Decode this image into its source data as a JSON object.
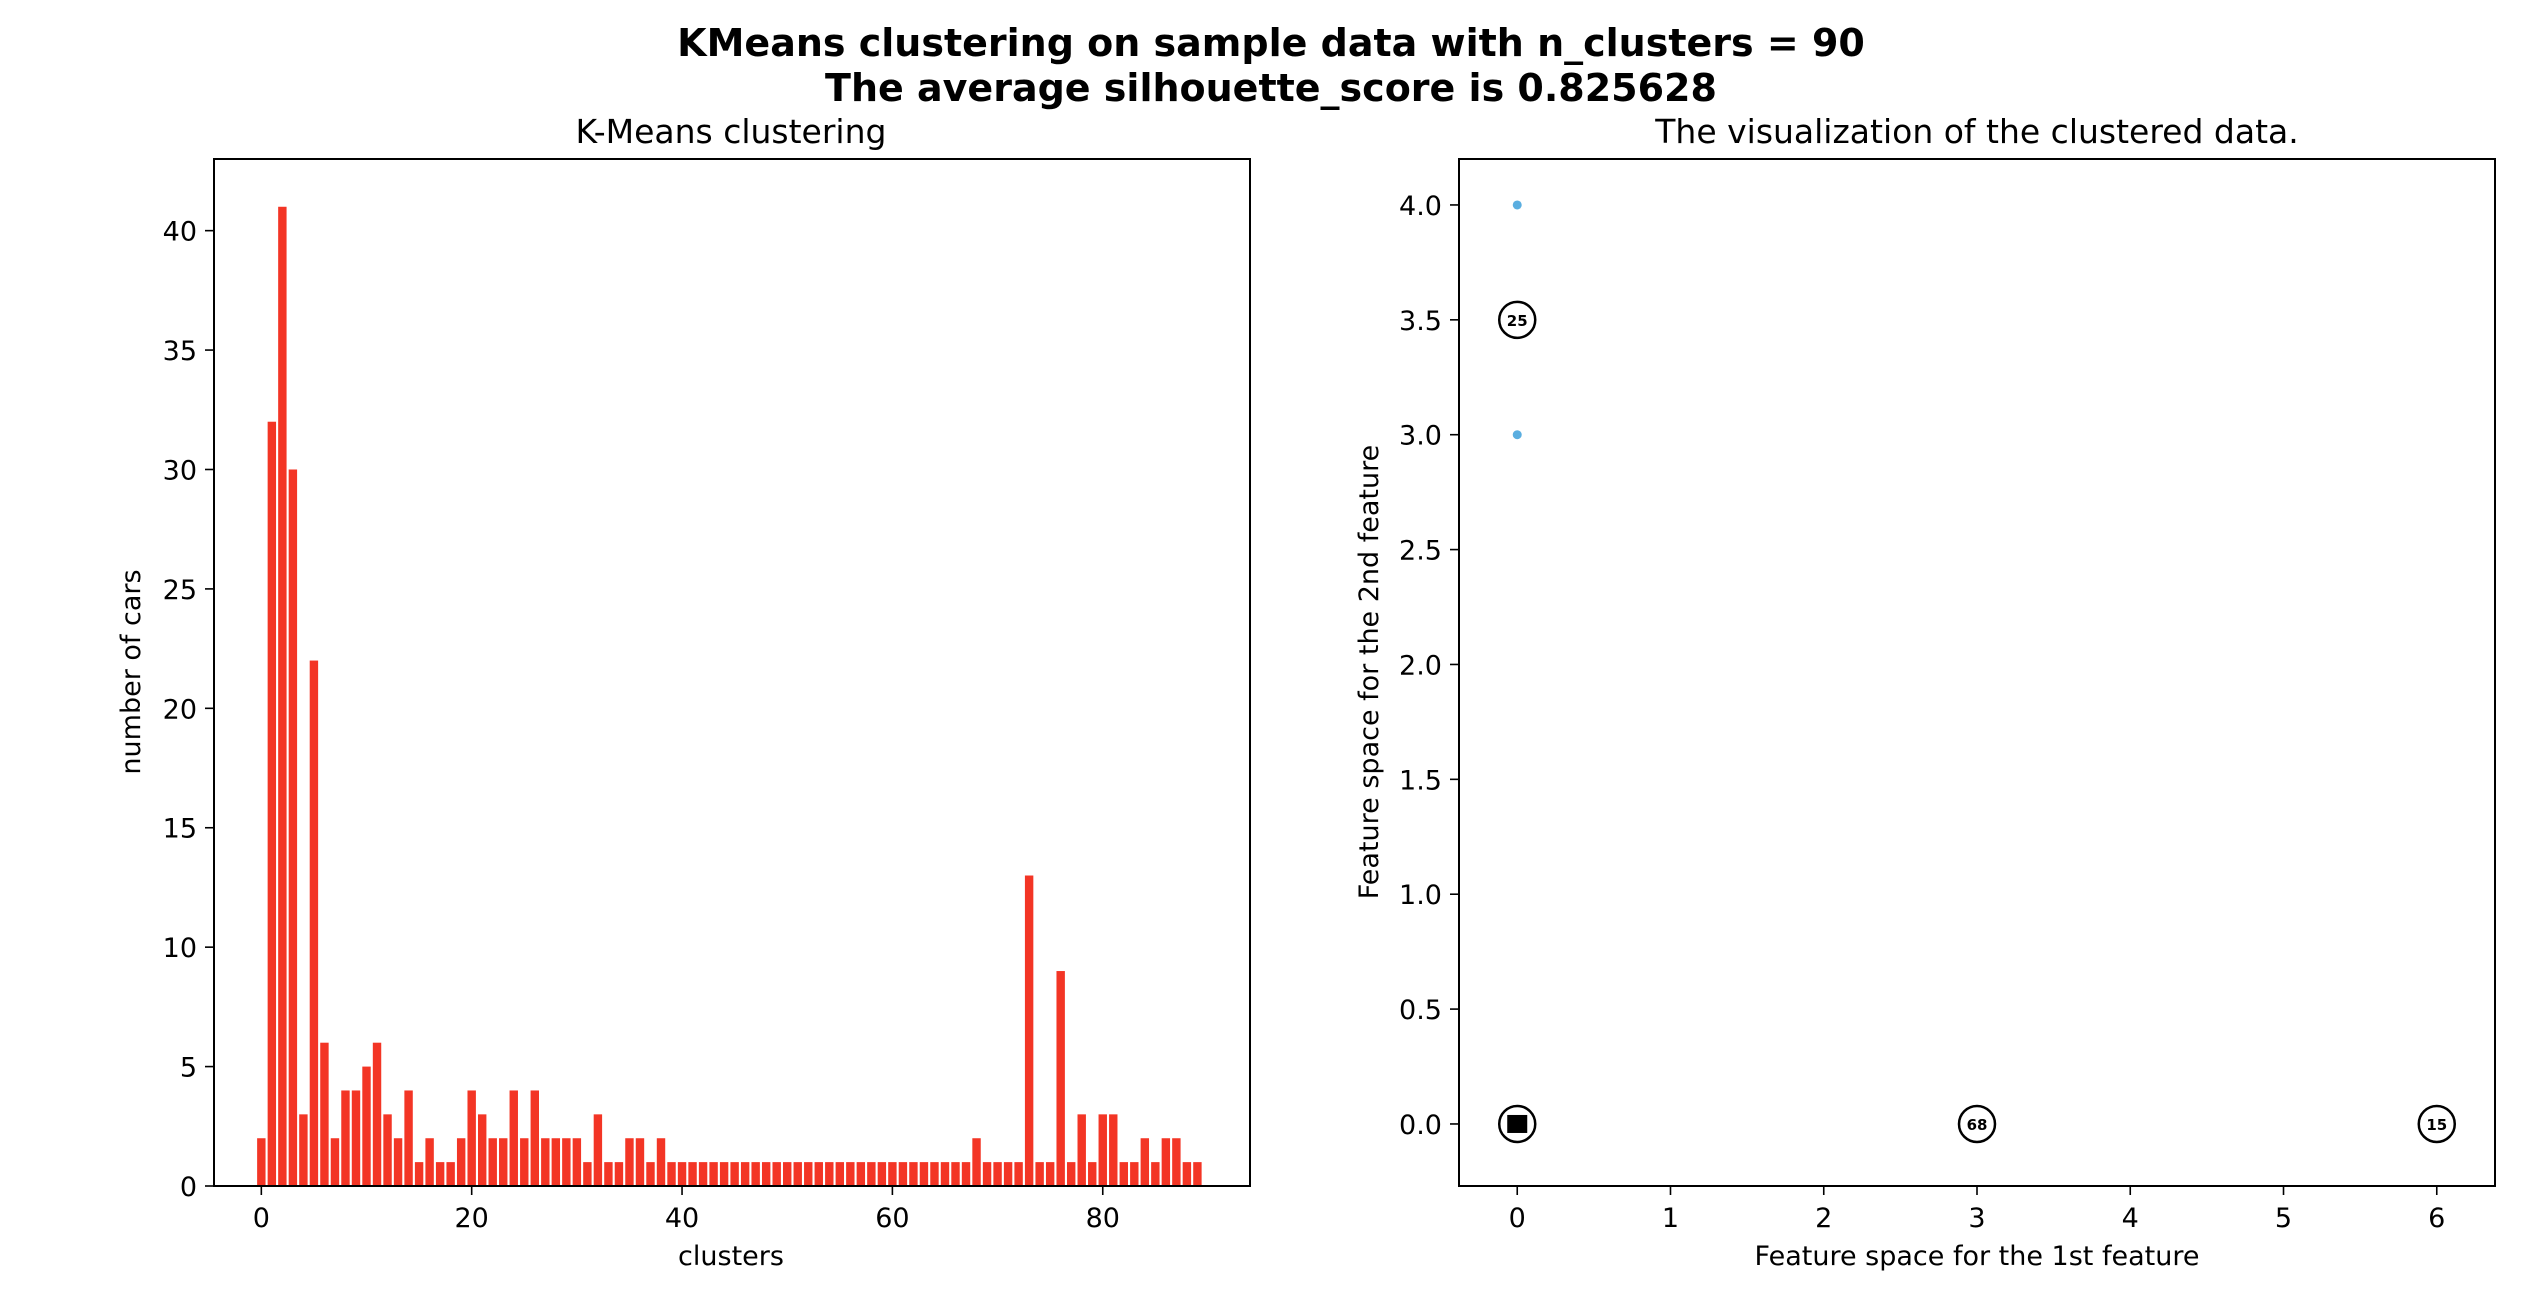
{
  "figure": {
    "title_line1": "KMeans clustering on sample data with n_clusters = 90",
    "title_line2": "The average silhouette_score is 0.825628"
  },
  "chart_data": [
    {
      "type": "bar",
      "title": "K-Means clustering",
      "xlabel": "clusters",
      "ylabel": "number of cars",
      "xlim": [
        -4.5,
        94
      ],
      "ylim": [
        0,
        43
      ],
      "xticks": [
        0,
        20,
        40,
        60,
        80
      ],
      "yticks": [
        0,
        5,
        10,
        15,
        20,
        25,
        30,
        35,
        40
      ],
      "color": "#f33525",
      "categories": [
        0,
        1,
        2,
        3,
        4,
        5,
        6,
        7,
        8,
        9,
        10,
        11,
        12,
        13,
        14,
        15,
        16,
        17,
        18,
        19,
        20,
        21,
        22,
        23,
        24,
        25,
        26,
        27,
        28,
        29,
        30,
        31,
        32,
        33,
        34,
        35,
        36,
        37,
        38,
        39,
        40,
        41,
        42,
        43,
        44,
        45,
        46,
        47,
        48,
        49,
        50,
        51,
        52,
        53,
        54,
        55,
        56,
        57,
        58,
        59,
        60,
        61,
        62,
        63,
        64,
        65,
        66,
        67,
        68,
        69,
        70,
        71,
        72,
        73,
        74,
        75,
        76,
        77,
        78,
        79,
        80,
        81,
        82,
        83,
        84,
        85,
        86,
        87,
        88,
        89
      ],
      "values": [
        2,
        32,
        41,
        30,
        3,
        22,
        6,
        2,
        4,
        4,
        5,
        6,
        3,
        2,
        4,
        1,
        2,
        1,
        1,
        2,
        4,
        3,
        2,
        2,
        4,
        2,
        4,
        2,
        2,
        2,
        2,
        1,
        3,
        1,
        1,
        2,
        2,
        1,
        2,
        1,
        1,
        1,
        1,
        1,
        1,
        1,
        1,
        1,
        1,
        1,
        1,
        1,
        1,
        1,
        1,
        1,
        1,
        1,
        1,
        1,
        1,
        1,
        1,
        1,
        1,
        1,
        1,
        1,
        2,
        1,
        1,
        1,
        1,
        13,
        1,
        1,
        9,
        1,
        3,
        1,
        3,
        3,
        1,
        1,
        2,
        1,
        2,
        2,
        1,
        1
      ]
    },
    {
      "type": "scatter",
      "title": "The visualization of the clustered data.",
      "xlabel": "Feature space for the 1st feature",
      "ylabel": "Feature space for the 2nd feature",
      "xlim": [
        -0.38,
        6.38
      ],
      "ylim": [
        -0.27,
        4.2
      ],
      "xticks": [
        0,
        1,
        2,
        3,
        4,
        5,
        6
      ],
      "yticks": [
        0.0,
        0.5,
        1.0,
        1.5,
        2.0,
        2.5,
        3.0,
        3.5,
        4.0
      ],
      "yticklabels": [
        "0.0",
        "0.5",
        "1.0",
        "1.5",
        "2.0",
        "2.5",
        "3.0",
        "3.5",
        "4.0"
      ],
      "points": [
        {
          "x": 0,
          "y": 4.0,
          "color": "#5aaee0"
        },
        {
          "x": 0,
          "y": 3.0,
          "color": "#5aaee0"
        }
      ],
      "centers": [
        {
          "x": 0,
          "y": 3.5,
          "label": "25"
        },
        {
          "x": 0,
          "y": 0,
          "label": ""
        },
        {
          "x": 3,
          "y": 0,
          "label": "68"
        },
        {
          "x": 6,
          "y": 0,
          "label": "15"
        }
      ]
    }
  ]
}
